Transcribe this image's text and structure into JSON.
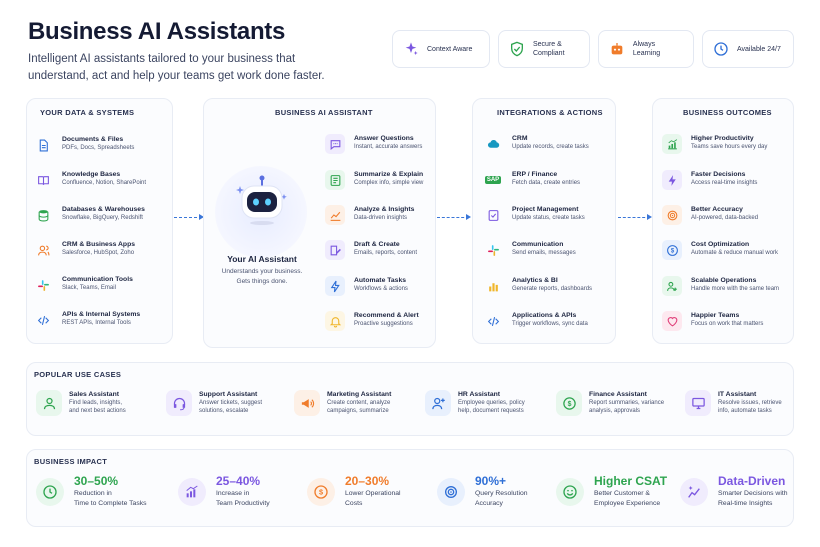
{
  "header": {
    "title": "Business AI Assistants",
    "subtitle": "Intelligent AI assistants tailored to your business that understand, act and help your teams get work done faster."
  },
  "features": [
    {
      "label": "Context Aware",
      "icon": "sparkle-icon",
      "color": "#7b57e0"
    },
    {
      "label": "Secure & Compliant",
      "icon": "shield-check-icon",
      "color": "#2ea44f"
    },
    {
      "label": "Always Learning",
      "icon": "robot-icon",
      "color": "#f07c2b"
    },
    {
      "label": "Available 24/7",
      "icon": "clock-icon",
      "color": "#2f6fd6"
    }
  ],
  "data_systems": {
    "title": "YOUR DATA & SYSTEMS",
    "items": [
      {
        "title": "Documents & Files",
        "desc": "PDFs, Docs, Spreadsheets",
        "icon": "document-icon",
        "color": "#2f6fd6"
      },
      {
        "title": "Knowledge Bases",
        "desc": "Confluence, Notion, SharePoint",
        "icon": "book-icon",
        "color": "#7b57e0"
      },
      {
        "title": "Databases & Warehouses",
        "desc": "Snowflake, BigQuery, Redshift",
        "icon": "database-icon",
        "color": "#2ea44f"
      },
      {
        "title": "CRM & Business Apps",
        "desc": "Salesforce, HubSpot, Zoho",
        "icon": "users-icon",
        "color": "#f07c2b"
      },
      {
        "title": "Communication Tools",
        "desc": "Slack, Teams, Email",
        "icon": "slack-icon",
        "color": "#e01e5a"
      },
      {
        "title": "APIs & Internal Systems",
        "desc": "REST APIs, Internal Tools",
        "icon": "code-icon",
        "color": "#2f6fd6"
      }
    ]
  },
  "assistant": {
    "title": "BUSINESS AI ASSISTANT",
    "name": "Your AI Assistant",
    "desc_line1": "Understands your business.",
    "desc_line2": "Gets things done.",
    "capabilities": [
      {
        "title": "Answer Questions",
        "desc": "Instant, accurate answers",
        "icon": "chat-icon",
        "color": "#7b57e0"
      },
      {
        "title": "Summarize & Explain",
        "desc": "Complex info, simple view",
        "icon": "summary-icon",
        "color": "#2ea44f"
      },
      {
        "title": "Analyze & Insights",
        "desc": "Data-driven insights",
        "icon": "chart-icon",
        "color": "#f07c2b"
      },
      {
        "title": "Draft & Create",
        "desc": "Emails, reports, content",
        "icon": "edit-icon",
        "color": "#7b57e0"
      },
      {
        "title": "Automate Tasks",
        "desc": "Workflows & actions",
        "icon": "bolt-icon",
        "color": "#2f6fd6"
      },
      {
        "title": "Recommend & Alert",
        "desc": "Proactive suggestions",
        "icon": "bell-icon",
        "color": "#f0b62b"
      }
    ]
  },
  "integrations": {
    "title": "INTEGRATIONS & ACTIONS",
    "items": [
      {
        "title": "CRM",
        "desc": "Update records, create tasks",
        "icon": "cloud-icon",
        "color": "#1798c1"
      },
      {
        "title": "ERP / Finance",
        "desc": "Fetch data, create entries",
        "icon": "sap-icon",
        "color": "#2ea44f",
        "badge": "SAP"
      },
      {
        "title": "Project Management",
        "desc": "Update status, create tasks",
        "icon": "project-icon",
        "color": "#7b57e0"
      },
      {
        "title": "Communication",
        "desc": "Send emails, messages",
        "icon": "slack-icon",
        "color": "#e01e5a"
      },
      {
        "title": "Analytics & BI",
        "desc": "Generate reports, dashboards",
        "icon": "bars-icon",
        "color": "#f0b62b"
      },
      {
        "title": "Applications & APIs",
        "desc": "Trigger workflows, sync data",
        "icon": "code-icon",
        "color": "#2f6fd6"
      }
    ]
  },
  "outcomes": {
    "title": "BUSINESS OUTCOMES",
    "items": [
      {
        "title": "Higher Productivity",
        "desc": "Teams save hours every day",
        "icon": "trend-up-icon",
        "color": "#2ea44f"
      },
      {
        "title": "Faster Decisions",
        "desc": "Access real-time insights",
        "icon": "bolt-icon",
        "color": "#7b57e0"
      },
      {
        "title": "Better Accuracy",
        "desc": "AI-powered, data-backed",
        "icon": "target-icon",
        "color": "#f07c2b"
      },
      {
        "title": "Cost Optimization",
        "desc": "Automate & reduce manual work",
        "icon": "dollar-icon",
        "color": "#2f6fd6"
      },
      {
        "title": "Scalable Operations",
        "desc": "Handle more with the same team",
        "icon": "team-icon",
        "color": "#2ea44f"
      },
      {
        "title": "Happier Teams",
        "desc": "Focus on work that matters",
        "icon": "heart-icon",
        "color": "#e0407a"
      }
    ]
  },
  "use_cases": {
    "title": "POPULAR USE CASES",
    "items": [
      {
        "title": "Sales Assistant",
        "line1": "Find leads, insights,",
        "line2": "and next best actions",
        "icon": "person-icon",
        "color": "#2ea44f"
      },
      {
        "title": "Support Assistant",
        "line1": "Answer tickets, suggest",
        "line2": "solutions, escalate",
        "icon": "headset-icon",
        "color": "#7b57e0"
      },
      {
        "title": "Marketing Assistant",
        "line1": "Create content, analyze",
        "line2": "campaigns, summarize",
        "icon": "megaphone-icon",
        "color": "#f07c2b"
      },
      {
        "title": "HR Assistant",
        "line1": "Employee queries, policy",
        "line2": "help, document requests",
        "icon": "person-add-icon",
        "color": "#2f6fd6"
      },
      {
        "title": "Finance Assistant",
        "line1": "Report summaries, variance",
        "line2": "analysis, approvals",
        "icon": "dollar-icon",
        "color": "#2ea44f"
      },
      {
        "title": "IT Assistant",
        "line1": "Resolve issues, retrieve",
        "line2": "info, automate tasks",
        "icon": "monitor-icon",
        "color": "#7b57e0"
      }
    ]
  },
  "impact": {
    "title": "BUSINESS IMPACT",
    "items": [
      {
        "value": "30–50%",
        "line1": "Reduction in",
        "line2": "Time to Complete Tasks",
        "icon": "clock-icon",
        "color": "#2ea44f"
      },
      {
        "value": "25–40%",
        "line1": "Increase in",
        "line2": "Team Productivity",
        "icon": "bars-up-icon",
        "color": "#7b57e0"
      },
      {
        "value": "20–30%",
        "line1": "Lower Operational",
        "line2": "Costs",
        "icon": "dollar-icon",
        "color": "#f07c2b"
      },
      {
        "value": "90%+",
        "line1": "Query Resolution",
        "line2": "Accuracy",
        "icon": "target-icon",
        "color": "#2f6fd6"
      },
      {
        "value": "Higher CSAT",
        "line1": "Better Customer &",
        "line2": "Employee Experience",
        "icon": "smile-icon",
        "color": "#2ea44f"
      },
      {
        "value": "Data-Driven",
        "line1": "Smarter Decisions with",
        "line2": "Real-time Insights",
        "icon": "sparkle-chart-icon",
        "color": "#7b57e0"
      }
    ]
  }
}
